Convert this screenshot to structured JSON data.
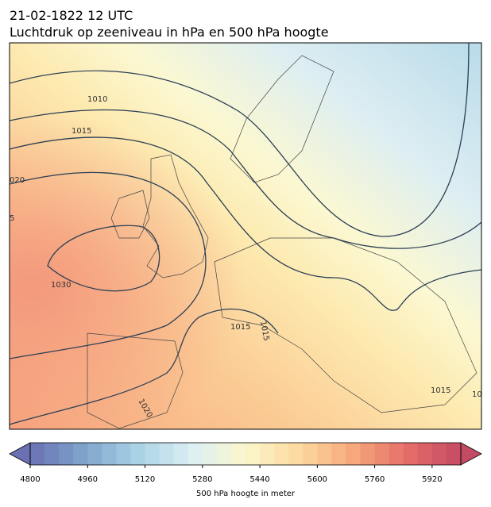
{
  "header": {
    "date": "21-02-1822 12 UTC",
    "title": "Luchtdruk op zeeniveau in hPa en 500 hPa hoogte"
  },
  "map": {
    "contour_labels": [
      "1010",
      "1015",
      "020",
      "5",
      "1030",
      "1015",
      "1015",
      "1020",
      "1015",
      "10"
    ]
  },
  "colorbar": {
    "lim": [
      4800,
      6000
    ],
    "ticks": [
      4800,
      4960,
      5120,
      5280,
      5440,
      5600,
      5760,
      5920
    ],
    "label": "500 hPa hoogte in meter"
  }
}
